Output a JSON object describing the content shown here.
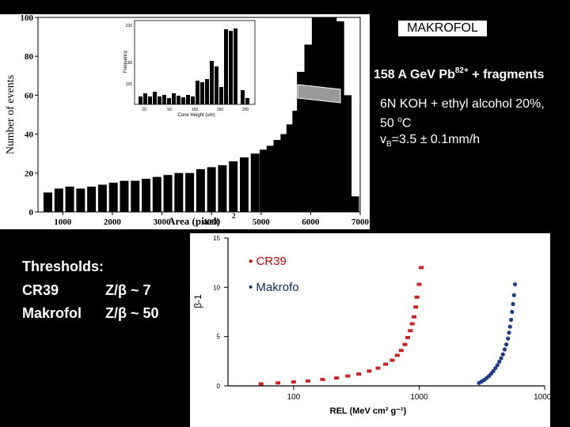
{
  "badge": "MAKROFOL",
  "beam": {
    "text": "158 A GeV Pb",
    "charge": "82+",
    "suffix": " + fragments"
  },
  "etch": {
    "line1": "6N KOH + ethyl alcohol 20%,",
    "line2_a": "50 ",
    "line2_deg": "o",
    "line2_b": "C",
    "line3_a": "v",
    "line3_sub": "B",
    "line3_b": "=3.5 ± 0.1mm/h"
  },
  "thresholds": {
    "title": "Thresholds:",
    "cr39_label": "CR39",
    "cr39_value": "Z/β ~ 7",
    "makrofol_label": "Makrofol",
    "makrofol_value": "Z/β ~ 50"
  },
  "legend": {
    "cr39": "▪ CR39",
    "makrofol": "• Makrofo"
  },
  "chart_data": [
    {
      "type": "bar",
      "ylabel": "Number of events",
      "xlabel": "Area (pixel)",
      "xlabel_sup": "2",
      "xlim": [
        500,
        7000
      ],
      "ylim": [
        0,
        100
      ],
      "x_ticks": [
        "1000",
        "2000",
        "3000",
        "4000",
        "5000",
        "6000",
        "7000"
      ],
      "y_ticks": [
        "0",
        "20",
        "40",
        "60",
        "80",
        "100"
      ],
      "series": [
        {
          "name": "charge peaks",
          "x": [
            700,
            920,
            1140,
            1360,
            1580,
            1800,
            2020,
            2240,
            2460,
            2680,
            2900,
            3120,
            3340,
            3560,
            3780,
            4000,
            4220,
            4440,
            4660,
            4880,
            5060,
            5200,
            5340,
            5480,
            5600,
            5720,
            5830
          ],
          "values": [
            10,
            12,
            13,
            12,
            13,
            14,
            15,
            16,
            16,
            17,
            18,
            19,
            20,
            20,
            22,
            23,
            24,
            26,
            28,
            30,
            32,
            34,
            37,
            40,
            45,
            52,
            62
          ]
        },
        {
          "name": "main peak",
          "x": [
            5900,
            6050,
            6200,
            6350,
            6500,
            6650,
            6800
          ],
          "values": [
            72,
            86,
            100,
            100,
            98,
            60,
            8
          ]
        }
      ],
      "inset": {
        "ylabel": "Frequency",
        "xlabel": "Cone Height (um)",
        "y_ticks": [
          "239",
          "60",
          "120"
        ],
        "x_ticks": [
          "20",
          "50",
          "100",
          "150",
          "200"
        ]
      }
    },
    {
      "type": "scatter",
      "ylabel": "β-1",
      "xlabel": "REL (MeV cm² g⁻¹)",
      "x_scale": "log",
      "xlim": [
        30,
        10000
      ],
      "ylim": [
        0,
        15
      ],
      "x_ticks": [
        "100",
        "1000",
        "10000"
      ],
      "y_ticks": [
        "0",
        "5",
        "10",
        "15"
      ],
      "series": [
        {
          "name": "CR39",
          "color": "#cc2222",
          "x": [
            55,
            75,
            100,
            130,
            170,
            220,
            270,
            330,
            400,
            470,
            540,
            610,
            670,
            720,
            770,
            810,
            850,
            880,
            910,
            940,
            960,
            1000,
            1040
          ],
          "y": [
            0.2,
            0.3,
            0.4,
            0.5,
            0.65,
            0.8,
            1.0,
            1.2,
            1.5,
            1.8,
            2.2,
            2.6,
            3.1,
            3.6,
            4.2,
            4.9,
            5.6,
            6.3,
            7.0,
            8.0,
            9.0,
            10.3,
            12.0
          ]
        },
        {
          "name": "Makrofol",
          "color": "#1e3a8a",
          "x": [
            3000,
            3150,
            3300,
            3450,
            3600,
            3750,
            3900,
            4050,
            4200,
            4350,
            4500,
            4650,
            4800,
            4950,
            5100,
            5200,
            5300,
            5400,
            5500,
            5600,
            5700,
            5800
          ],
          "y": [
            0.3,
            0.45,
            0.6,
            0.8,
            1.0,
            1.25,
            1.5,
            1.8,
            2.1,
            2.45,
            2.8,
            3.2,
            3.7,
            4.2,
            4.8,
            5.4,
            6.0,
            6.7,
            7.5,
            8.3,
            9.2,
            10.3
          ]
        }
      ]
    }
  ]
}
